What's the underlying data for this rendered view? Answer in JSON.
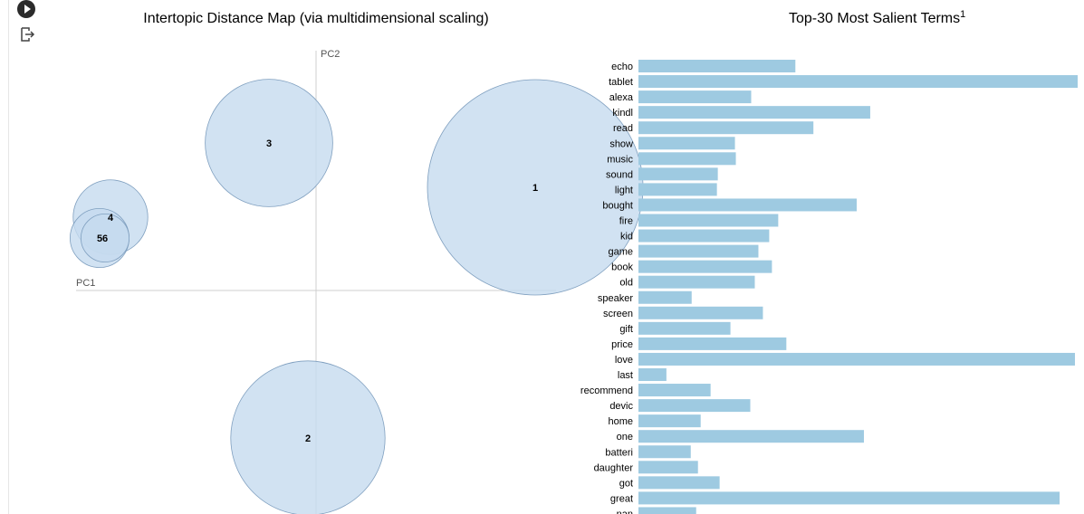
{
  "chart_data": [
    {
      "type": "scatter",
      "title": "Intertopic Distance Map (via multidimensional scaling)",
      "xlabel": "PC1",
      "ylabel": "PC2",
      "topics": [
        {
          "label": "1",
          "x": 0.242,
          "y": 0.114,
          "size": 0.4
        },
        {
          "label": "2",
          "x": -0.009,
          "y": -0.163,
          "size": 0.205
        },
        {
          "label": "3",
          "x": -0.052,
          "y": 0.163,
          "size": 0.14
        },
        {
          "label": "4",
          "x": -0.227,
          "y": 0.081,
          "size": 0.048
        },
        {
          "label": "5",
          "x": -0.239,
          "y": 0.058,
          "size": 0.03
        },
        {
          "label": "6",
          "x": -0.233,
          "y": 0.058,
          "size": 0.02
        }
      ],
      "xlim": [
        -0.265,
        0.265
      ],
      "ylim": [
        -0.245,
        0.265
      ],
      "color": "#c6dbef",
      "stroke": "#7f9fbf"
    },
    {
      "type": "bar",
      "orientation": "horizontal",
      "title": "Top-30 Most Salient Terms",
      "title_superscript": "1",
      "categories": [
        "echo",
        "tablet",
        "alexa",
        "kindl",
        "read",
        "show",
        "music",
        "sound",
        "light",
        "bought",
        "fire",
        "kid",
        "game",
        "book",
        "old",
        "speaker",
        "screen",
        "gift",
        "price",
        "love",
        "last",
        "recommend",
        "devic",
        "home",
        "one",
        "batteri",
        "daughter",
        "got",
        "great",
        "nan"
      ],
      "values": [
        174,
        487,
        125,
        257,
        194,
        107,
        108,
        88,
        87,
        242,
        155,
        145,
        133,
        148,
        129,
        59,
        138,
        102,
        164,
        484,
        31,
        80,
        124,
        69,
        250,
        58,
        66,
        90,
        467,
        64
      ],
      "xlim": [
        0,
        487
      ],
      "color": "#9ecae1"
    }
  ]
}
